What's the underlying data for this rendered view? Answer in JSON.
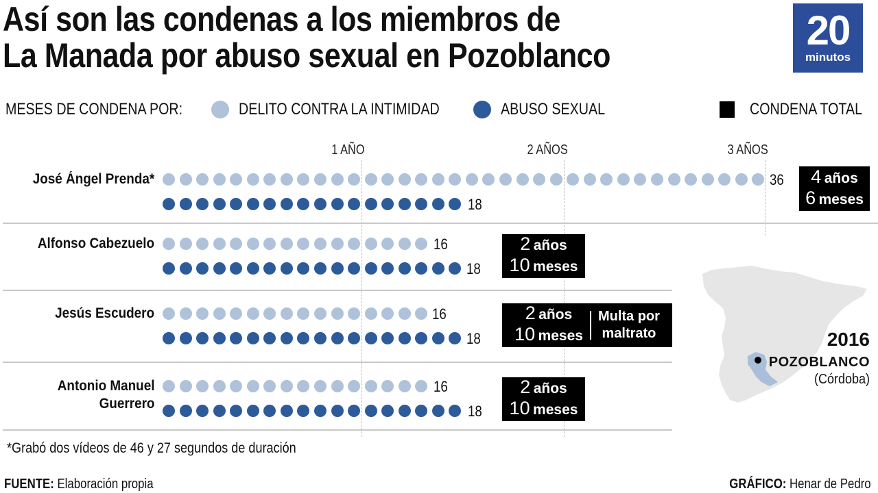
{
  "header": {
    "title_line1": "Así son las condenas a los miembros de",
    "title_line2": "La Manada por abuso sexual en Pozoblanco",
    "logo_number": "20",
    "logo_word": "minutos",
    "logo_color": "#2b4d9a"
  },
  "legend": {
    "prefix": "MESES DE CONDENA POR:",
    "items": [
      {
        "label": "DELITO CONTRA LA INTIMIDAD",
        "color": "#b0c2da",
        "shape": "circle"
      },
      {
        "label": "ABUSO SEXUAL",
        "color": "#2d5b9a",
        "shape": "circle"
      },
      {
        "label": "CONDENA TOTAL",
        "color": "#000000",
        "shape": "square"
      }
    ]
  },
  "chart_data": {
    "type": "dot-matrix",
    "title": "Así son las condenas a los miembros de La Manada por abuso sexual en Pozoblanco",
    "unit": "meses",
    "axis_ticks": [
      {
        "months": 12,
        "label": "1 AÑO"
      },
      {
        "months": 24,
        "label": "2 AÑOS"
      },
      {
        "months": 36,
        "label": "3 AÑOS"
      }
    ],
    "series": [
      {
        "name": "DELITO CONTRA LA INTIMIDAD",
        "color": "#b0c2da"
      },
      {
        "name": "ABUSO SEXUAL",
        "color": "#2d5b9a"
      }
    ],
    "rows": [
      {
        "name": "José Ángel Prenda*",
        "intimidad": 36,
        "abuso": 18,
        "total_line1_num": "4",
        "total_line1_unit": "años",
        "total_line2_num": "6",
        "total_line2_unit": "meses",
        "note": ""
      },
      {
        "name": "Alfonso Cabezuelo",
        "intimidad": 16,
        "abuso": 18,
        "total_line1_num": "2",
        "total_line1_unit": "años",
        "total_line2_num": "10",
        "total_line2_unit": "meses",
        "note": ""
      },
      {
        "name": "Jesús Escudero",
        "intimidad": 16,
        "abuso": 18,
        "total_line1_num": "2",
        "total_line1_unit": "años",
        "total_line2_num": "10",
        "total_line2_unit": "meses",
        "note_line1": "Multa por",
        "note_line2": "maltrato"
      },
      {
        "name_line1": "Antonio Manuel",
        "name_line2": "Guerrero",
        "name": "Antonio Manuel Guerrero",
        "intimidad": 16,
        "abuso": 18,
        "total_line1_num": "2",
        "total_line1_unit": "años",
        "total_line2_num": "10",
        "total_line2_unit": "meses",
        "note": ""
      }
    ]
  },
  "map": {
    "year": "2016",
    "town": "POZOBLANCO",
    "province": "(Córdoba)",
    "land_color": "#e6e6e6",
    "region_color": "#a9bfd9"
  },
  "footer": {
    "footnote": "*Grabó dos vídeos de 46 y 27 segundos de duración",
    "source_label": "FUENTE:",
    "source_value": " Elaboración propia",
    "credit_label": "GRÁFICO:",
    "credit_value": " Henar de Pedro"
  }
}
